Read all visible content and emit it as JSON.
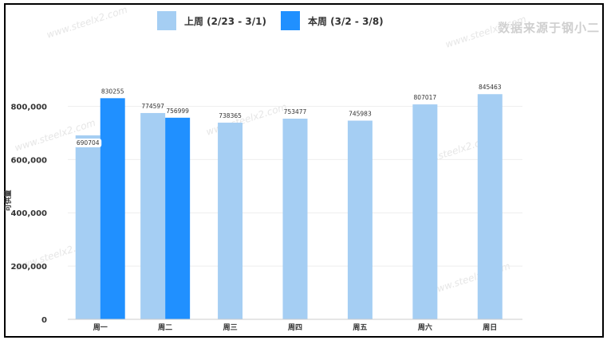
{
  "source_tag": "数据来源于钢小二",
  "chart_data": {
    "type": "bar",
    "ylabel": "可供量",
    "categories": [
      "周一",
      "周二",
      "周三",
      "周四",
      "周五",
      "周六",
      "周日"
    ],
    "series": [
      {
        "name": "上周 (2/23 - 3/1)",
        "color": "#a5cef3",
        "values": [
          690704,
          774597,
          738365,
          753477,
          745983,
          807017,
          845463
        ]
      },
      {
        "name": "本周 (3/2 - 3/8)",
        "color": "#2090ff",
        "values": [
          830255,
          756999,
          null,
          null,
          null,
          null,
          null
        ]
      }
    ],
    "y_ticks": [
      {
        "value": 0,
        "label": "0"
      },
      {
        "value": 200000,
        "label": "200,000"
      },
      {
        "value": 400000,
        "label": "400,000"
      },
      {
        "value": 600000,
        "label": "600,000"
      },
      {
        "value": 800000,
        "label": "800,000"
      }
    ],
    "ylim": [
      0,
      900000
    ],
    "legend": "top",
    "grid": true
  }
}
